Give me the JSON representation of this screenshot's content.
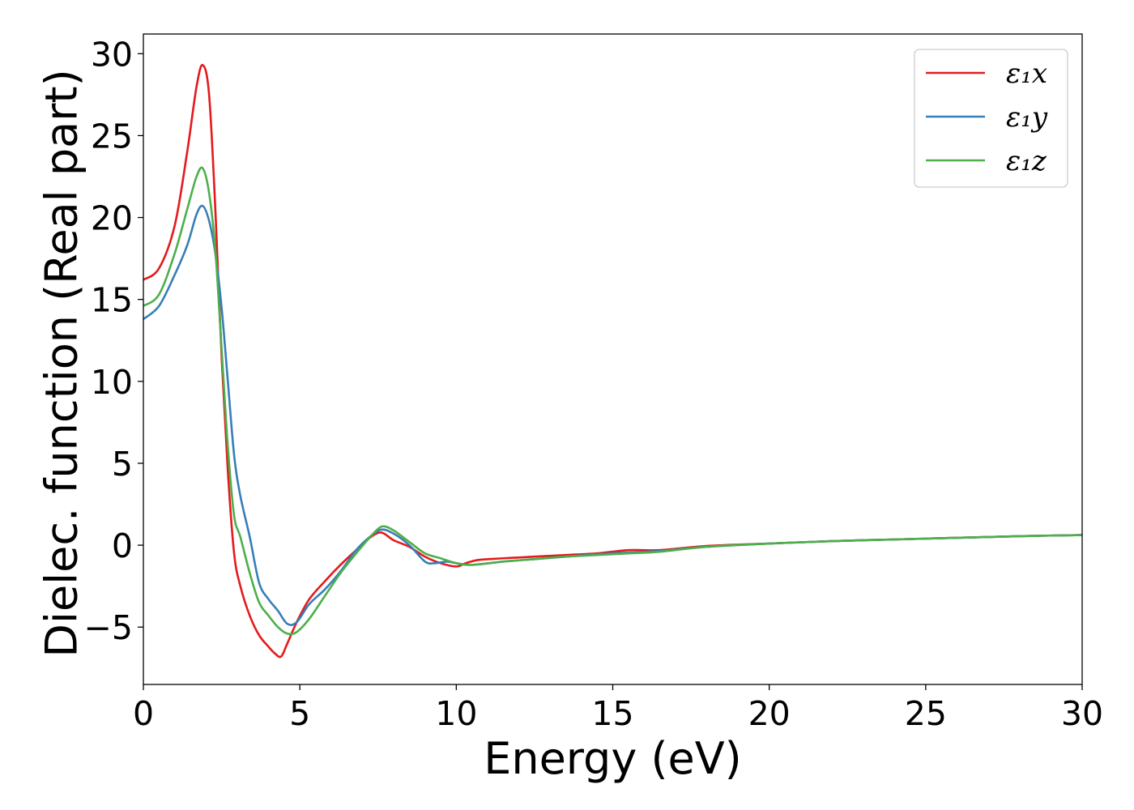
{
  "chart_data": {
    "type": "line",
    "title": "",
    "xlabel": "Energy (eV)",
    "ylabel": "Dielec. function (Real part)",
    "xlim": [
      0,
      30
    ],
    "ylim": [
      -8.5,
      31.2
    ],
    "xticks": [
      0,
      5,
      10,
      15,
      20,
      25,
      30
    ],
    "yticks": [
      -5,
      0,
      5,
      10,
      15,
      20,
      25,
      30
    ],
    "xtick_labels": [
      "0",
      "5",
      "10",
      "15",
      "20",
      "25",
      "30"
    ],
    "ytick_labels": [
      "−5",
      "0",
      "5",
      "10",
      "15",
      "20",
      "25",
      "30"
    ],
    "grid": false,
    "legend_position": "top-right",
    "series": [
      {
        "name": "ε₁x",
        "color": "#e41a1c",
        "x": [
          0,
          0.5,
          1.0,
          1.4,
          1.7,
          1.9,
          2.1,
          2.3,
          2.5,
          2.7,
          2.9,
          3.1,
          3.4,
          3.7,
          4.0,
          4.2,
          4.4,
          4.6,
          4.9,
          5.3,
          5.8,
          6.3,
          6.8,
          7.2,
          7.5,
          7.7,
          8.0,
          8.5,
          9.0,
          9.5,
          10.0,
          10.3,
          10.7,
          11.5,
          12.5,
          13.5,
          14.5,
          15.5,
          16.5,
          18,
          20,
          22,
          24,
          26,
          28,
          30
        ],
        "values": [
          16.2,
          16.9,
          19.5,
          24.0,
          28.0,
          29.3,
          27.5,
          20.5,
          11.5,
          4.5,
          -0.5,
          -2.5,
          -4.3,
          -5.5,
          -6.2,
          -6.6,
          -6.8,
          -6.0,
          -4.7,
          -3.3,
          -2.2,
          -1.2,
          -0.3,
          0.4,
          0.75,
          0.7,
          0.3,
          -0.1,
          -0.7,
          -1.1,
          -1.3,
          -1.1,
          -0.9,
          -0.8,
          -0.7,
          -0.6,
          -0.5,
          -0.3,
          -0.3,
          -0.05,
          0.1,
          0.25,
          0.35,
          0.45,
          0.55,
          0.62
        ]
      },
      {
        "name": "ε₁y",
        "color": "#377eb8",
        "x": [
          0,
          0.5,
          1.0,
          1.4,
          1.7,
          1.9,
          2.1,
          2.3,
          2.5,
          2.7,
          2.9,
          3.1,
          3.4,
          3.7,
          4.0,
          4.3,
          4.6,
          4.9,
          5.3,
          5.8,
          6.3,
          6.8,
          7.2,
          7.6,
          8.0,
          8.5,
          9.0,
          9.3,
          9.7,
          10.0,
          10.5,
          11.5,
          12.5,
          13.5,
          14.5,
          15.5,
          16.5,
          18,
          20,
          22,
          24,
          26,
          28,
          30
        ],
        "values": [
          13.8,
          14.6,
          16.5,
          18.3,
          20.2,
          20.7,
          19.8,
          17.8,
          14.5,
          10.0,
          5.5,
          3.0,
          0.5,
          -2.3,
          -3.3,
          -4.0,
          -4.8,
          -4.7,
          -3.6,
          -2.7,
          -1.6,
          -0.3,
          0.45,
          0.95,
          0.7,
          0.0,
          -1.0,
          -1.1,
          -1.0,
          -1.1,
          -1.2,
          -1.0,
          -0.85,
          -0.7,
          -0.55,
          -0.45,
          -0.35,
          -0.1,
          0.1,
          0.25,
          0.35,
          0.45,
          0.55,
          0.62
        ]
      },
      {
        "name": "ε₁z",
        "color": "#4daf4a",
        "x": [
          0,
          0.5,
          1.0,
          1.4,
          1.7,
          1.9,
          2.1,
          2.3,
          2.5,
          2.7,
          2.9,
          3.1,
          3.4,
          3.7,
          4.0,
          4.3,
          4.6,
          4.9,
          5.3,
          5.8,
          6.3,
          6.8,
          7.2,
          7.5,
          7.7,
          8.0,
          8.5,
          9.0,
          9.5,
          10.0,
          10.5,
          11.5,
          12.5,
          13.5,
          14.5,
          15.5,
          16.5,
          18,
          20,
          22,
          24,
          26,
          28,
          30
        ],
        "values": [
          14.6,
          15.3,
          17.8,
          20.5,
          22.5,
          23.0,
          21.5,
          18.0,
          12.0,
          6.0,
          1.8,
          0.5,
          -1.7,
          -3.5,
          -4.3,
          -5.0,
          -5.4,
          -5.3,
          -4.5,
          -3.1,
          -1.7,
          -0.5,
          0.4,
          1.0,
          1.15,
          0.9,
          0.2,
          -0.5,
          -0.8,
          -1.1,
          -1.2,
          -1.0,
          -0.85,
          -0.7,
          -0.6,
          -0.5,
          -0.4,
          -0.1,
          0.1,
          0.25,
          0.35,
          0.45,
          0.55,
          0.62
        ]
      }
    ]
  }
}
